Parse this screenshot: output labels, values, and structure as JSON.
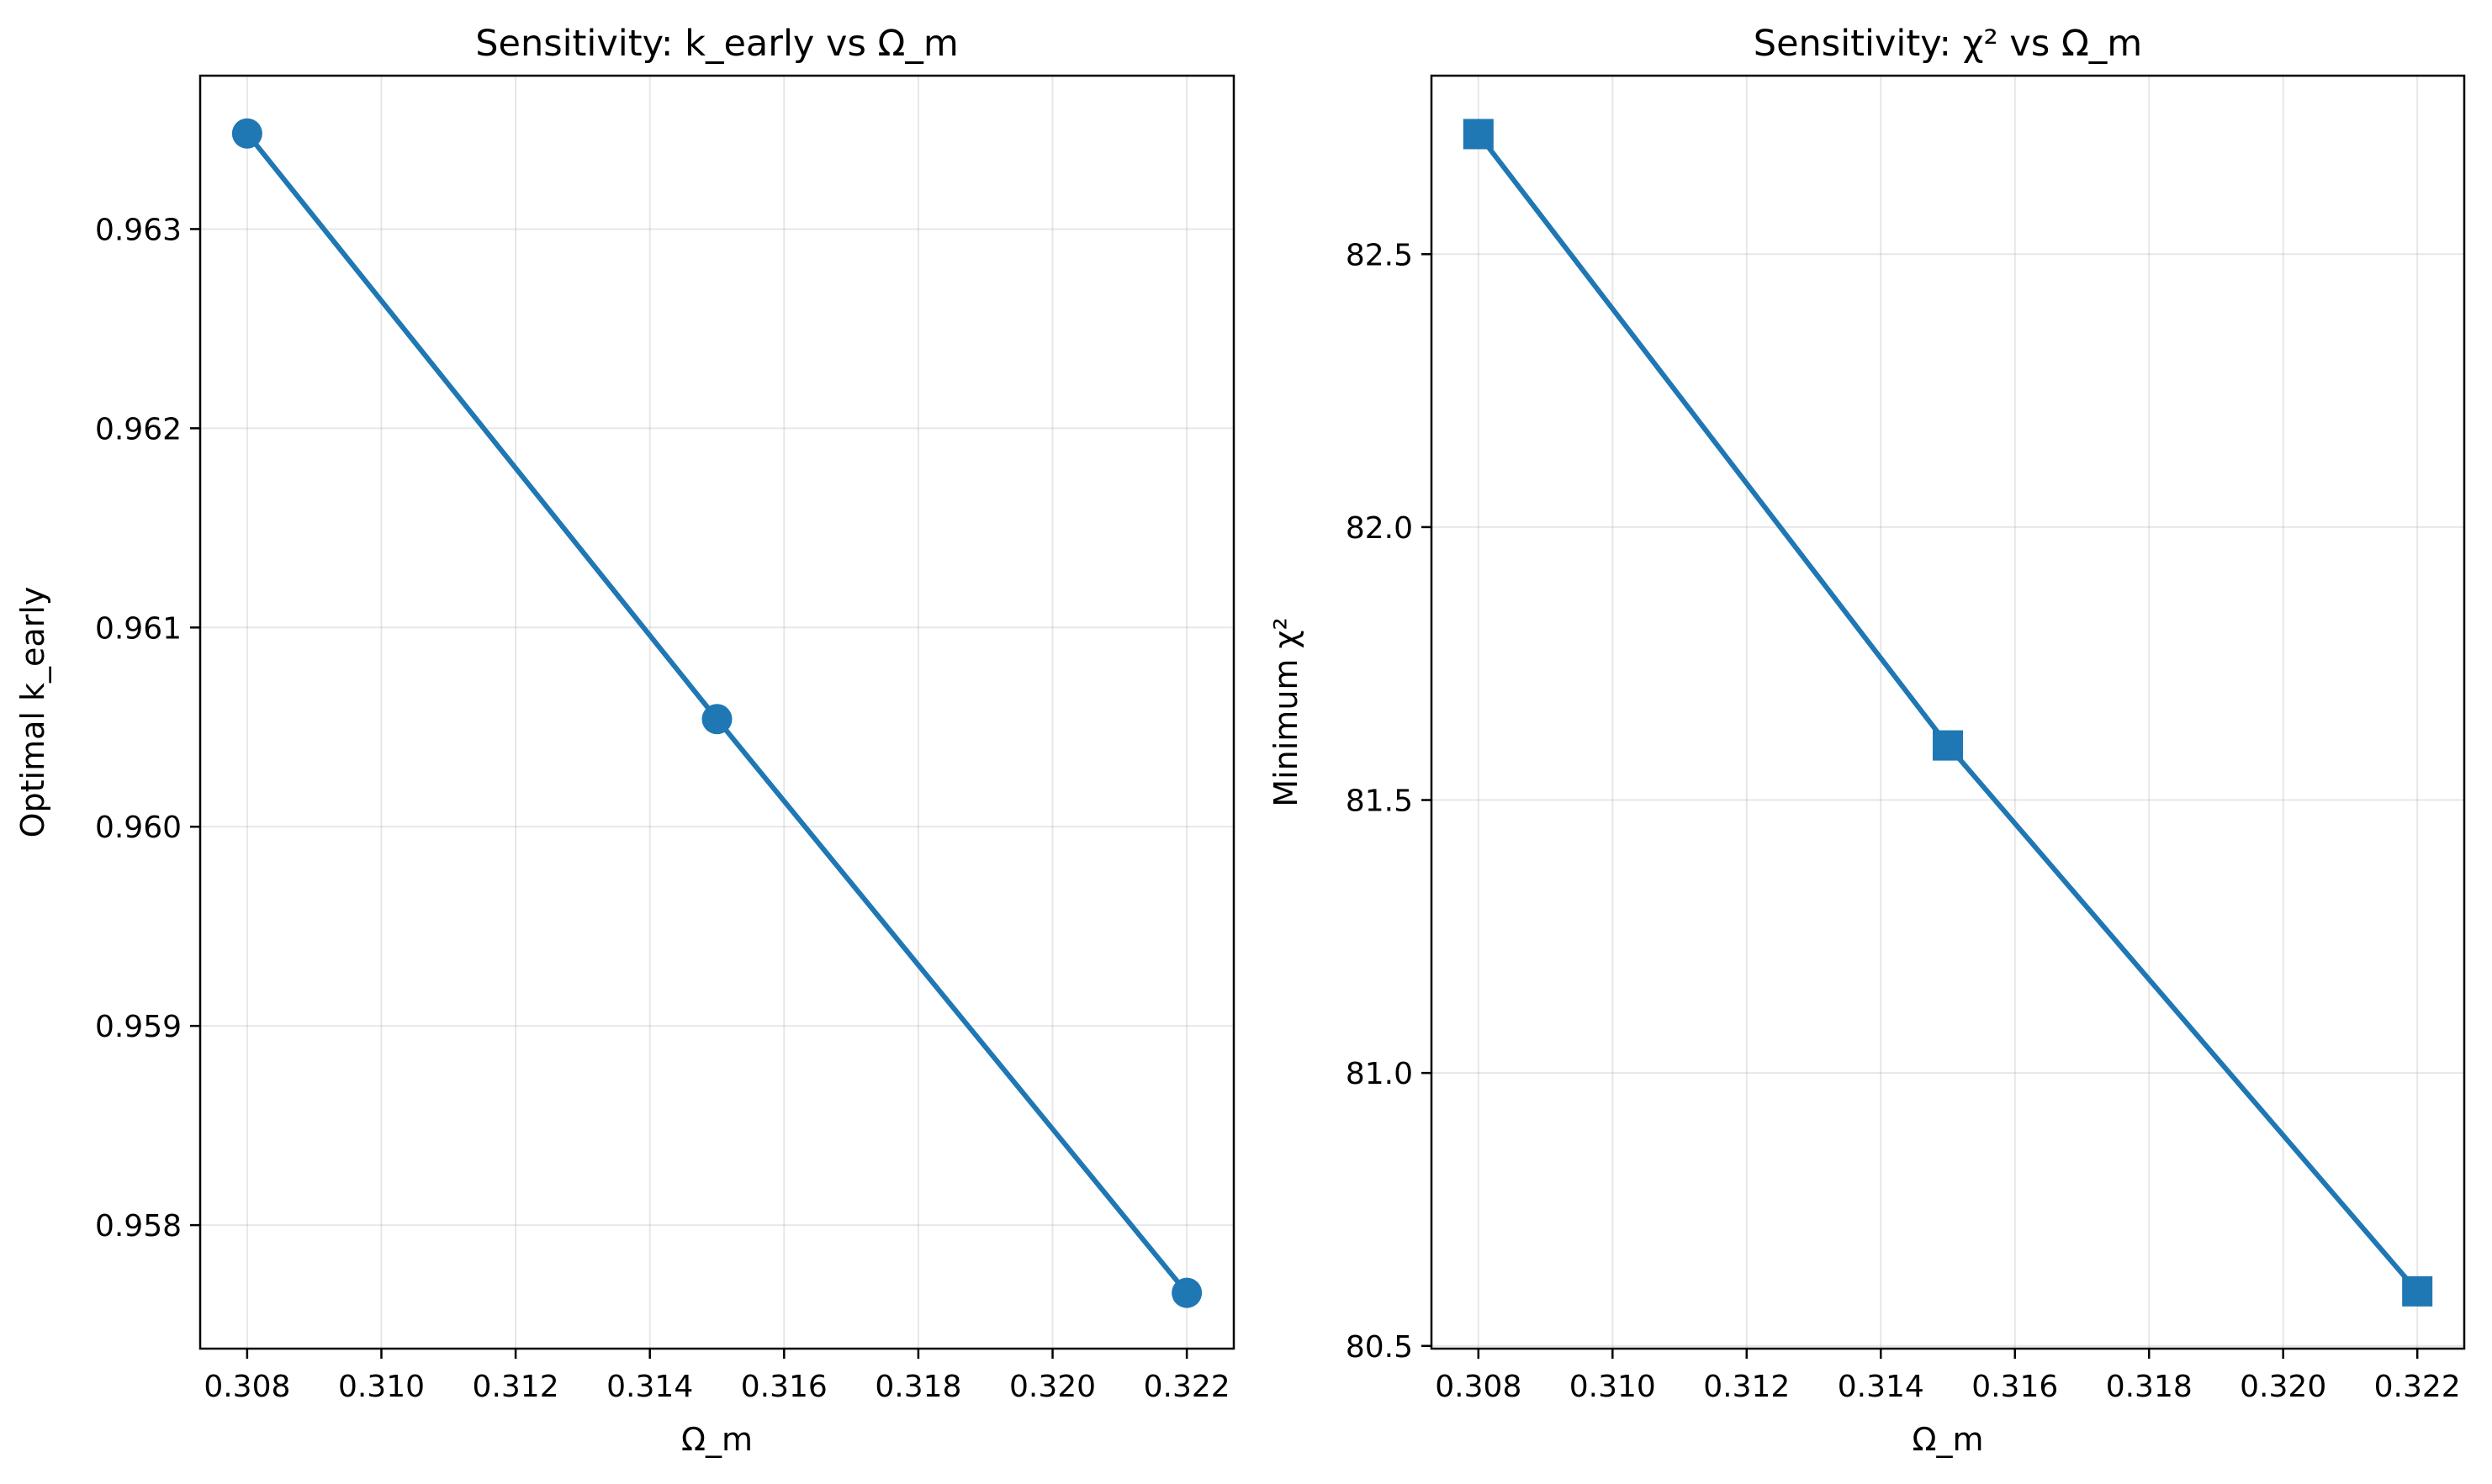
{
  "chart_data": [
    {
      "type": "line",
      "title": "Sensitivity: k_early vs Ω_m",
      "xlabel": "Ω_m",
      "ylabel": "Optimal k_early",
      "grid": true,
      "legend": "none",
      "marker": "circle",
      "color": "#1f77b4",
      "xlim": [
        0.3073,
        0.3227
      ],
      "ylim": [
        0.95738,
        0.96377
      ],
      "xticks": [
        0.308,
        0.31,
        0.312,
        0.314,
        0.316,
        0.318,
        0.32,
        0.322
      ],
      "xtick_labels": [
        "0.308",
        "0.310",
        "0.312",
        "0.314",
        "0.316",
        "0.318",
        "0.320",
        "0.322"
      ],
      "yticks": [
        0.958,
        0.959,
        0.96,
        0.961,
        0.962,
        0.963
      ],
      "ytick_labels": [
        "0.958",
        "0.959",
        "0.960",
        "0.961",
        "0.962",
        "0.963"
      ],
      "x": [
        0.308,
        0.315,
        0.322
      ],
      "y": [
        0.96348,
        0.96054,
        0.95766
      ]
    },
    {
      "type": "line",
      "title": "Sensitivity: χ² vs Ω_m",
      "xlabel": "Ω_m",
      "ylabel": "Minimum χ²",
      "grid": true,
      "legend": "none",
      "marker": "square",
      "color": "#1f77b4",
      "xlim": [
        0.3073,
        0.3227
      ],
      "ylim": [
        80.495,
        82.827
      ],
      "xticks": [
        0.308,
        0.31,
        0.312,
        0.314,
        0.316,
        0.318,
        0.32,
        0.322
      ],
      "xtick_labels": [
        "0.308",
        "0.310",
        "0.312",
        "0.314",
        "0.316",
        "0.318",
        "0.320",
        "0.322"
      ],
      "yticks": [
        80.5,
        81.0,
        81.5,
        82.0,
        82.5
      ],
      "ytick_labels": [
        "80.5",
        "81.0",
        "81.5",
        "82.0",
        "82.5"
      ],
      "x": [
        0.308,
        0.315,
        0.322
      ],
      "y": [
        82.72,
        81.6,
        80.6
      ]
    }
  ]
}
